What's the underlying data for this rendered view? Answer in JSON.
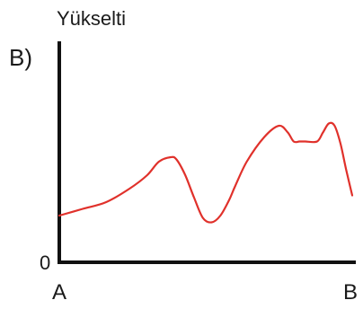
{
  "panel_label": "B)",
  "chart_data": {
    "type": "line",
    "ylabel": "Yükselti",
    "y_tick_labels": [
      "0"
    ],
    "x_tick_labels": [
      "A",
      "B"
    ],
    "ylim": [
      0,
      100
    ],
    "xlim": [
      0,
      100
    ],
    "grid": false,
    "series": [
      {
        "color": "#e0312b",
        "x": [
          0,
          8,
          16,
          24,
          30,
          34,
          38,
          40,
          43,
          46,
          49,
          52,
          55,
          58,
          60,
          64,
          70,
          75,
          78,
          80,
          82,
          84,
          88,
          90,
          92,
          94,
          96,
          98,
          100
        ],
        "y": [
          20,
          23,
          26,
          32,
          38,
          44,
          46,
          45,
          38,
          28,
          19,
          17,
          20,
          27,
          33,
          44,
          55,
          60,
          57,
          53,
          53,
          53,
          53,
          57,
          61,
          60,
          52,
          40,
          29
        ]
      }
    ],
    "colors": {
      "axis": "#111111",
      "line": "#e0312b"
    }
  }
}
